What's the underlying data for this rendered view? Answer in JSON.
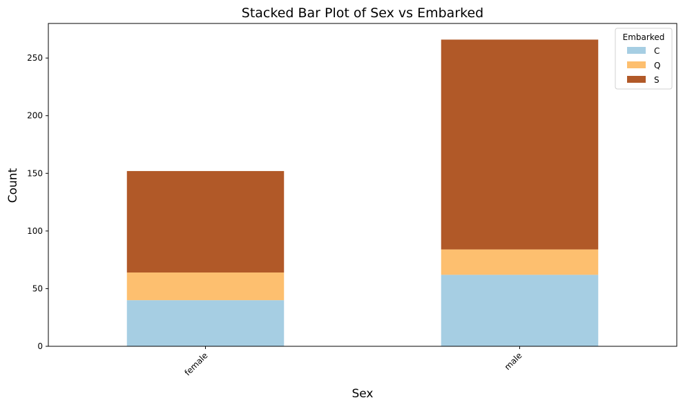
{
  "chart_data": {
    "type": "bar",
    "stacked": true,
    "title": "Stacked Bar Plot of Sex vs Embarked",
    "xlabel": "Sex",
    "ylabel": "Count",
    "categories": [
      "female",
      "male"
    ],
    "series": [
      {
        "name": "C",
        "values": [
          40,
          62
        ],
        "color": "#a6cee3"
      },
      {
        "name": "Q",
        "values": [
          24,
          22
        ],
        "color": "#fdbf6f"
      },
      {
        "name": "S",
        "values": [
          88,
          182
        ],
        "color": "#b15928"
      }
    ],
    "ylim": [
      0,
      280
    ],
    "yticks": [
      0,
      50,
      100,
      150,
      200,
      250
    ],
    "legend": {
      "title": "Embarked",
      "placement": "top-right"
    },
    "grid": false
  }
}
